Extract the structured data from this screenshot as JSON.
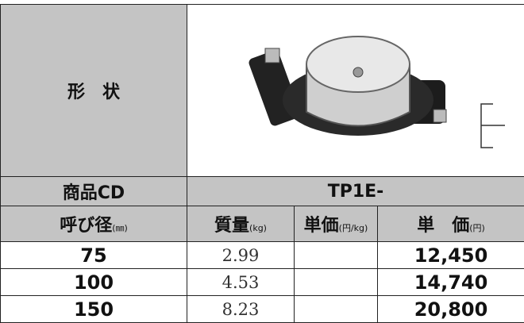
{
  "shape_label": "形　状",
  "product_code": {
    "label": "商品CD",
    "value": "TP1E-"
  },
  "header": [
    {
      "label": "呼び径",
      "unit": "(㎜)"
    },
    {
      "label": "質量",
      "unit": "(kg)"
    },
    {
      "label": "単価",
      "unit": "(円/kg)"
    },
    {
      "label": "単　価",
      "unit": "(円)"
    }
  ],
  "rows": [
    {
      "size": "75",
      "mass": "2.99",
      "price": "12,450"
    },
    {
      "size": "100",
      "mass": "4.53",
      "price": "14,740"
    },
    {
      "size": "150",
      "mass": "8.23",
      "price": "20,800"
    }
  ]
}
